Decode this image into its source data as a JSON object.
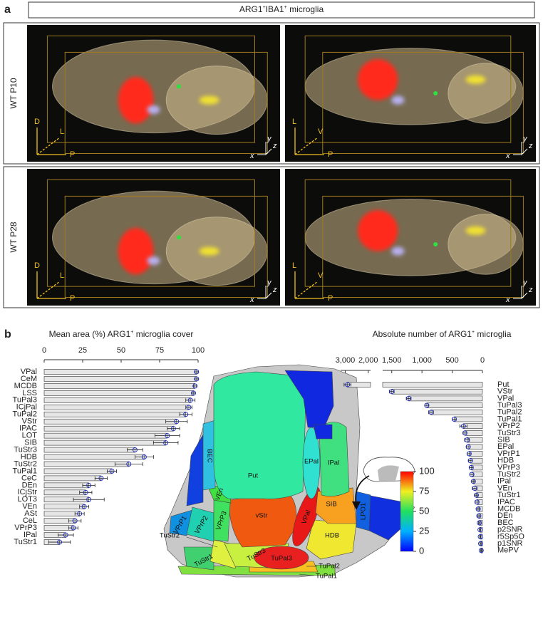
{
  "panel_labels": [
    "a",
    "b"
  ],
  "header": {
    "pre": "ARG1",
    "sup1": "+",
    "mid": "IBA1",
    "sup2": "+",
    "post": " microglia"
  },
  "rows": [
    {
      "label": "WT P10",
      "views": [
        {
          "axes": [
            "D",
            "L",
            "P",
            "y",
            "z",
            "x"
          ]
        },
        {
          "axes": [
            "L",
            "V",
            "P",
            "y",
            "z",
            "x"
          ]
        }
      ]
    },
    {
      "label": "WT P28",
      "views": [
        {
          "axes": [
            "D",
            "L",
            "P",
            "y",
            "z",
            "x"
          ]
        },
        {
          "axes": [
            "L",
            "V",
            "P",
            "y",
            "z",
            "x"
          ]
        }
      ]
    }
  ],
  "chart_data": [
    {
      "type": "bar",
      "orientation": "horizontal",
      "title": {
        "pre": "Mean area (%) ARG1",
        "sup": "+",
        "post": " microglia cover"
      },
      "categories": [
        "VPal",
        "CeM",
        "MCDB",
        "LSS",
        "TuPal3",
        "ICjPal",
        "TuPal2",
        "VStr",
        "IPAC",
        "LOT",
        "SIB",
        "TuStr3",
        "HDB",
        "TuStr2",
        "TuPal1",
        "CeC",
        "DEn",
        "ICjStr",
        "LOT3",
        "VEn",
        "ASt",
        "CeL",
        "VPrP3",
        "IPal",
        "TuStr1"
      ],
      "values": [
        99,
        99,
        98,
        97,
        95,
        94,
        92,
        86,
        84,
        80,
        79,
        59,
        65,
        55,
        44,
        37,
        29,
        27,
        29,
        26,
        23,
        20,
        19,
        14,
        10
      ],
      "errors": [
        1,
        1,
        1,
        1,
        3,
        2,
        4,
        7,
        4,
        8,
        8,
        5,
        6,
        9,
        3,
        4,
        4,
        4,
        10,
        3,
        3,
        4,
        3,
        5,
        7
      ],
      "color": "#e6e6e6",
      "error_color": "#222",
      "xlim": [
        0,
        100
      ],
      "xticks": [
        0,
        25,
        50,
        75,
        100
      ]
    },
    {
      "type": "bar",
      "orientation": "horizontal",
      "x_reversed": true,
      "title": {
        "pre": "Absolute number of ARG1",
        "sup": "+",
        "post": " microglia"
      },
      "categories": [
        "Put",
        "VStr",
        "VPal",
        "TuPal3",
        "TuPal2",
        "TuPal1",
        "VPrP2",
        "TuStr3",
        "SIB",
        "EPal",
        "VPrP1",
        "HDB",
        "VPrP3",
        "TuStr2",
        "IPal",
        "VEn",
        "TuStr1",
        "IPAC",
        "MCDB",
        "DEn",
        "BEC",
        "p2SNR",
        "r5Sp5O",
        "p1SNR",
        "MePV"
      ],
      "values": [
        2900,
        1500,
        1220,
        920,
        850,
        465,
        315,
        290,
        255,
        235,
        220,
        200,
        185,
        175,
        150,
        128,
        100,
        90,
        70,
        60,
        50,
        40,
        35,
        30,
        20
      ],
      "errors": [
        150,
        40,
        40,
        30,
        40,
        30,
        60,
        30,
        40,
        30,
        30,
        30,
        30,
        30,
        20,
        40,
        20,
        30,
        20,
        20,
        15,
        10,
        10,
        10,
        10
      ],
      "color": "#e6e6e6",
      "error_color": "#222",
      "xlim": [
        0,
        1650
      ],
      "xticks": [
        0,
        500,
        {
          "value": 1000,
          "label": "1,000"
        },
        {
          "value": 1500,
          "label": "1,500"
        }
      ],
      "x2lim": [
        1900,
        3200
      ],
      "x2ticks": [
        {
          "value": 2000,
          "label": "2,000"
        },
        {
          "value": 3000,
          "label": "3,000"
        }
      ]
    }
  ],
  "atlas": {
    "regions": [
      "Put",
      "EPal",
      "IPal",
      "BEC",
      "VEn",
      "VPrP3",
      "VPrP2",
      "VPrP1",
      "vStr",
      "VPal",
      "SIB",
      "LPO1",
      "HDB",
      "TuStr3",
      "TuStr2",
      "TuStr1",
      "TuPal3",
      "TuPal2",
      "TuPal1"
    ],
    "colorbar": {
      "lim": [
        0,
        100
      ],
      "ticks": [
        0,
        25,
        50,
        75,
        100
      ]
    }
  }
}
